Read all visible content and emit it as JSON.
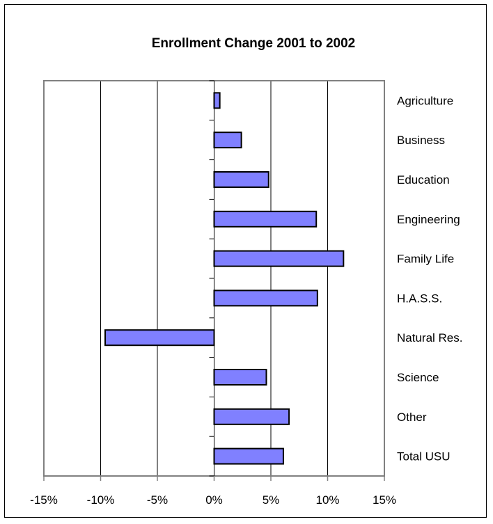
{
  "chart_data": {
    "type": "bar",
    "orientation": "horizontal",
    "title": "Enrollment Change 2001 to 2002",
    "categories": [
      "Agriculture",
      "Business",
      "Education",
      "Engineering",
      "Family Life",
      "H.A.S.S.",
      "Natural Res.",
      "Science",
      "Other",
      "Total USU"
    ],
    "values": [
      0.5,
      2.4,
      4.8,
      9.0,
      11.4,
      9.1,
      -9.6,
      4.6,
      6.6,
      6.1
    ],
    "xlim": [
      -15,
      15
    ],
    "x_ticks": [
      "-15%",
      "-10%",
      "-5%",
      "0%",
      "5%",
      "10%",
      "15%"
    ],
    "x_tick_values": [
      -15,
      -10,
      -5,
      0,
      5,
      10,
      15
    ],
    "xlabel": "",
    "ylabel": "",
    "grid": "vertical",
    "legend": "none",
    "bar_color": "#8080ff",
    "bar_edge_color": "#000000",
    "plot_border_color": "#808080"
  }
}
